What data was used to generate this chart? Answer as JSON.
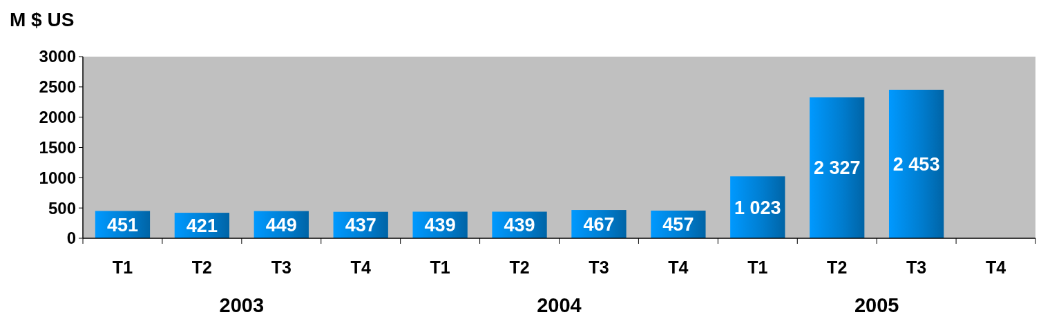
{
  "chart_data": {
    "type": "bar",
    "ylabel": "M $ US",
    "categories": [
      "T1",
      "T2",
      "T3",
      "T4",
      "T1",
      "T2",
      "T3",
      "T4",
      "T1",
      "T2",
      "T3",
      "T4"
    ],
    "values": [
      451,
      421,
      449,
      437,
      439,
      439,
      467,
      457,
      1023,
      2327,
      2453,
      null
    ],
    "value_labels": [
      "451",
      "421",
      "449",
      "437",
      "439",
      "439",
      "467",
      "457",
      "1 023",
      "2 327",
      "2 453",
      null
    ],
    "color": "#0099ff",
    "ylim": [
      0,
      3000
    ],
    "yticks": [
      0,
      500,
      1000,
      1500,
      2000,
      2500,
      3000
    ],
    "annotations": [
      "2003",
      "2004",
      "2005"
    ],
    "grid": false
  }
}
